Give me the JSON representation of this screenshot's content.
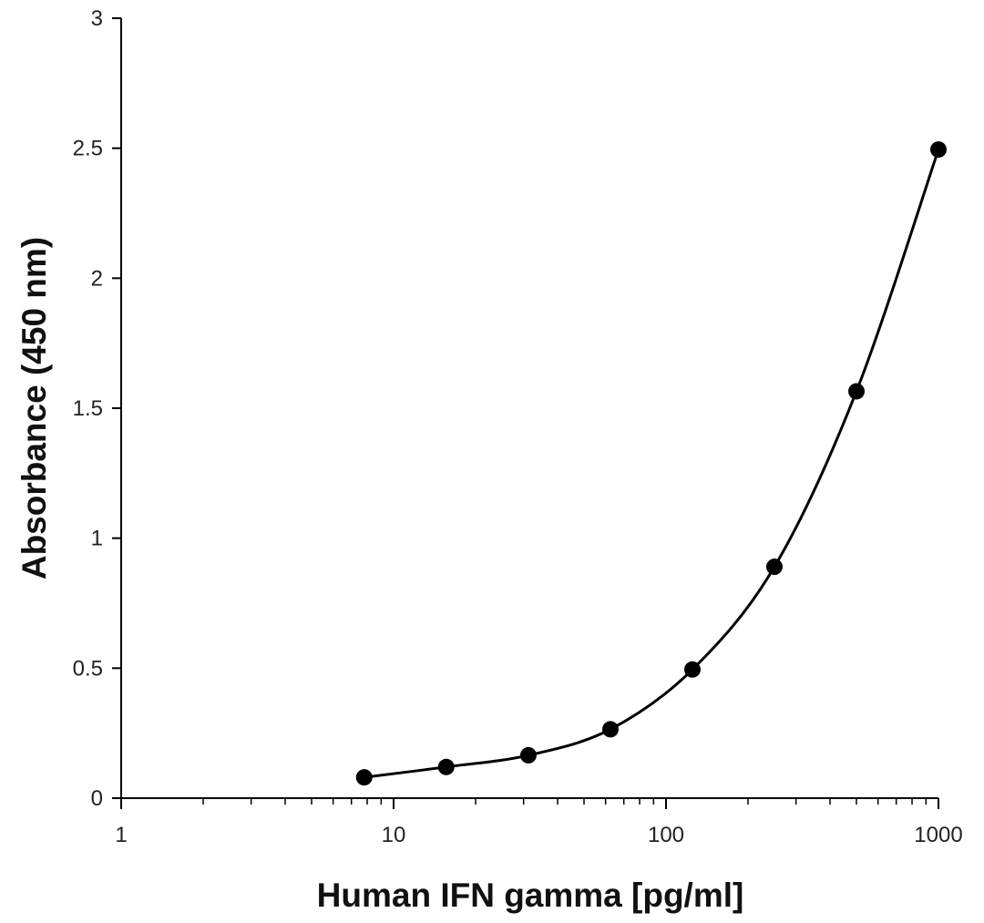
{
  "chart_data": {
    "type": "scatter",
    "xlabel": "Human IFN gamma [pg/ml]",
    "ylabel": "Absorbance (450 nm)",
    "x_scale": "log",
    "xlim": [
      1,
      1000
    ],
    "ylim": [
      0,
      3
    ],
    "x_ticks": [
      "1",
      "10",
      "100",
      "1000"
    ],
    "y_ticks": [
      "0",
      "0.5",
      "1",
      "1.5",
      "2",
      "2.5",
      "3"
    ],
    "grid": false,
    "series": [
      {
        "x": [
          7.8,
          15.6,
          31.25,
          62.5,
          125,
          250,
          500,
          1000
        ],
        "y": [
          0.08,
          0.12,
          0.165,
          0.265,
          0.495,
          0.89,
          1.565,
          2.495
        ],
        "marker": "circle",
        "line": "smooth",
        "color": "#000000"
      }
    ]
  }
}
